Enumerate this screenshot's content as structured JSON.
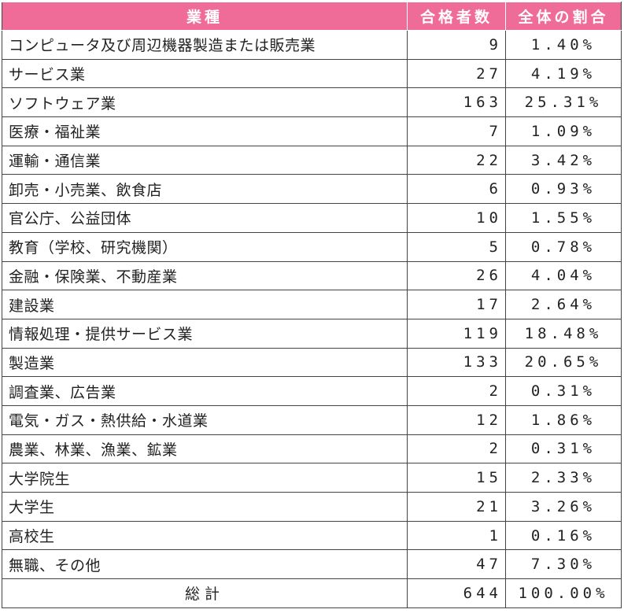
{
  "chart_data": {
    "type": "table",
    "columns": [
      "業種",
      "合格者数",
      "全体の割合"
    ],
    "rows": [
      {
        "industry": "コンピュータ及び周辺機器製造または販売業",
        "count": "9",
        "share": "1.40%"
      },
      {
        "industry": "サービス業",
        "count": "27",
        "share": "4.19%"
      },
      {
        "industry": "ソフトウェア業",
        "count": "163",
        "share": "25.31%"
      },
      {
        "industry": "医療・福祉業",
        "count": "7",
        "share": "1.09%"
      },
      {
        "industry": "運輸・通信業",
        "count": "22",
        "share": "3.42%"
      },
      {
        "industry": "卸売・小売業、飲食店",
        "count": "6",
        "share": "0.93%"
      },
      {
        "industry": "官公庁、公益団体",
        "count": "10",
        "share": "1.55%"
      },
      {
        "industry": "教育（学校、研究機関）",
        "count": "5",
        "share": "0.78%"
      },
      {
        "industry": "金融・保険業、不動産業",
        "count": "26",
        "share": "4.04%"
      },
      {
        "industry": "建設業",
        "count": "17",
        "share": "2.64%"
      },
      {
        "industry": "情報処理・提供サービス業",
        "count": "119",
        "share": "18.48%"
      },
      {
        "industry": "製造業",
        "count": "133",
        "share": "20.65%"
      },
      {
        "industry": "調査業、広告業",
        "count": "2",
        "share": "0.31%"
      },
      {
        "industry": "電気・ガス・熱供給・水道業",
        "count": "12",
        "share": "1.86%"
      },
      {
        "industry": "農業、林業、漁業、鉱業",
        "count": "2",
        "share": "0.31%"
      },
      {
        "industry": "大学院生",
        "count": "15",
        "share": "2.33%"
      },
      {
        "industry": "大学生",
        "count": "21",
        "share": "3.26%"
      },
      {
        "industry": "高校生",
        "count": "1",
        "share": "0.16%"
      },
      {
        "industry": "無職、その他",
        "count": "47",
        "share": "7.30%"
      }
    ],
    "total": {
      "label": "総計",
      "count": "644",
      "share": "100.00%"
    }
  },
  "colors": {
    "header_background": "#f06c98",
    "header_text": "#ffffff",
    "border": "#444444"
  }
}
